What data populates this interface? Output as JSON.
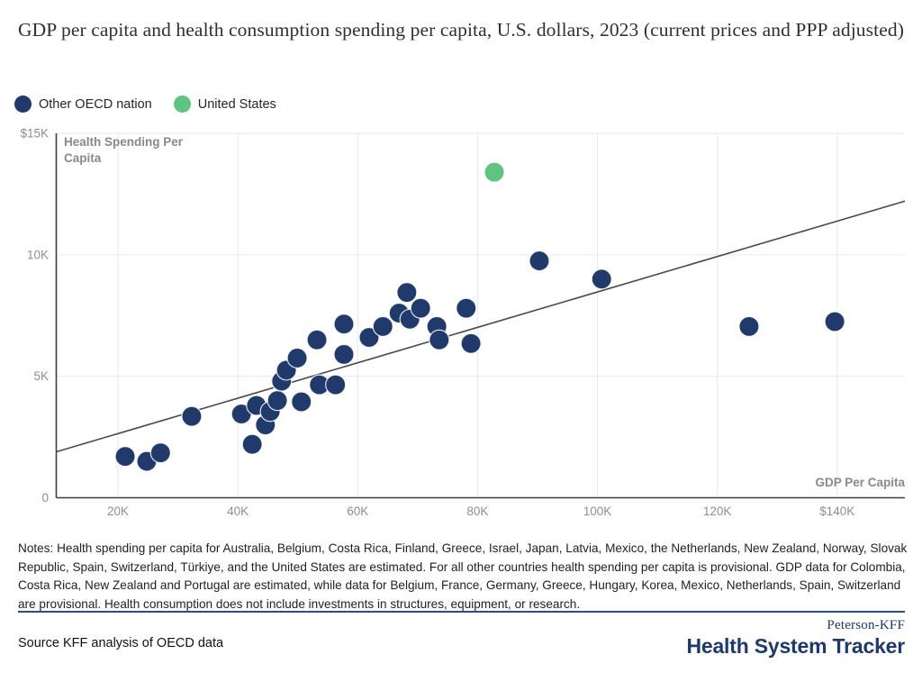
{
  "title": "GDP per capita and health consumption spending per capita, U.S. dollars, 2023 (current prices and PPP adjusted)",
  "legend": {
    "items": [
      {
        "label": "Other OECD nation",
        "color": "#203a6b"
      },
      {
        "label": "United States",
        "color": "#60c481"
      }
    ]
  },
  "chart_data": {
    "type": "scatter",
    "xlabel": "GDP Per Capita",
    "ylabel": "Health Spending Per Capita",
    "xlim": [
      9700,
      151300
    ],
    "ylim": [
      0,
      15000
    ],
    "grid": true,
    "legend_position": "top-left",
    "x_ticks": [
      {
        "value": 20000,
        "label": "20K"
      },
      {
        "value": 40000,
        "label": "40K"
      },
      {
        "value": 60000,
        "label": "60K"
      },
      {
        "value": 80000,
        "label": "80K"
      },
      {
        "value": 100000,
        "label": "100K"
      },
      {
        "value": 120000,
        "label": "120K"
      },
      {
        "value": 140000,
        "label": "$140K"
      }
    ],
    "y_ticks": [
      {
        "value": 0,
        "label": "0"
      },
      {
        "value": 5000,
        "label": "5K"
      },
      {
        "value": 10000,
        "label": "10K"
      },
      {
        "value": 15000,
        "label": "$15K"
      }
    ],
    "series": [
      {
        "name": "Other OECD nation",
        "color": "#203a6b",
        "points": [
          [
            21200,
            1700
          ],
          [
            24800,
            1500
          ],
          [
            27100,
            1850
          ],
          [
            32300,
            3350
          ],
          [
            40600,
            3450
          ],
          [
            42400,
            2200
          ],
          [
            43100,
            3800
          ],
          [
            44600,
            3000
          ],
          [
            45400,
            3550
          ],
          [
            46600,
            4000
          ],
          [
            47300,
            4800
          ],
          [
            48100,
            5250
          ],
          [
            49900,
            5750
          ],
          [
            50600,
            3950
          ],
          [
            53200,
            6500
          ],
          [
            53600,
            4650
          ],
          [
            56300,
            4650
          ],
          [
            57700,
            7150
          ],
          [
            57700,
            5900
          ],
          [
            61900,
            6600
          ],
          [
            64200,
            7050
          ],
          [
            66900,
            7600
          ],
          [
            68200,
            8450
          ],
          [
            68700,
            7350
          ],
          [
            70500,
            7800
          ],
          [
            73200,
            7050
          ],
          [
            73600,
            6500
          ],
          [
            78100,
            7800
          ],
          [
            78900,
            6350
          ],
          [
            90300,
            9750
          ],
          [
            100700,
            9000
          ],
          [
            125300,
            7050
          ],
          [
            139600,
            7250
          ]
        ]
      },
      {
        "name": "United States",
        "color": "#60c481",
        "points": [
          [
            82800,
            13400
          ]
        ]
      }
    ],
    "trendline": {
      "x1": 9700,
      "y1": 1890,
      "x2": 151300,
      "y2": 12210
    }
  },
  "notes": "Notes: Health spending per capita for Australia, Belgium, Costa Rica, Finland, Greece, Israel, Japan, Latvia, Mexico, the Netherlands, New Zealand, Norway, Slovak Republic, Spain, Switzerland, Türkiye, and the United States are estimated. For all other countries health spending per capita is provisional. GDP data for Colombia, Costa Rica, New Zealand and Portugal are estimated, while data for Belgium, France, Germany, Greece, Hungary, Korea, Mexico, Netherlands, Spain, Switzerland are provisional. Health consumption does not include investments in structures, equipment, or research.",
  "source": "Source KFF analysis of OECD data",
  "logo": {
    "top": "Peterson-KFF",
    "bottom": "Health System Tracker",
    "color": "#1c3a6b"
  }
}
